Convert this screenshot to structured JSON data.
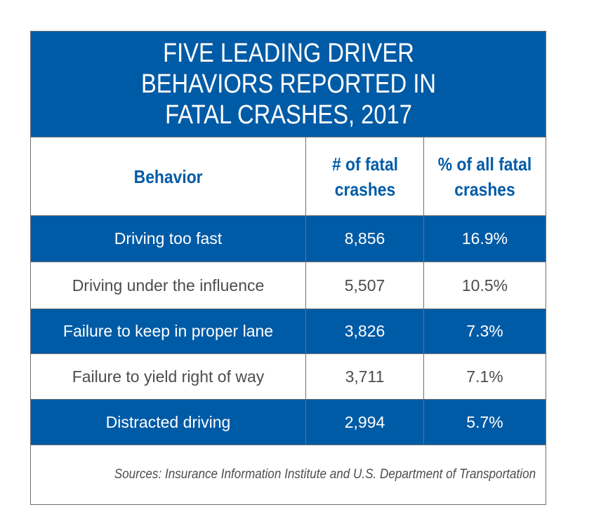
{
  "chart_data": {
    "type": "table",
    "title": "FIVE LEADING DRIVER BEHAVIORS REPORTED IN FATAL CRASHES, 2017",
    "columns": [
      "Behavior",
      "# of fatal crashes",
      "% of all fatal crashes"
    ],
    "rows": [
      {
        "behavior": "Driving too fast",
        "fatal_crashes": "8,856",
        "percent": "16.9%"
      },
      {
        "behavior": "Driving under the influence",
        "fatal_crashes": "5,507",
        "percent": "10.5%"
      },
      {
        "behavior": "Failure to keep in proper lane",
        "fatal_crashes": "3,826",
        "percent": "7.3%"
      },
      {
        "behavior": "Failure to yield right of way",
        "fatal_crashes": "3,711",
        "percent": "7.1%"
      },
      {
        "behavior": "Distracted driving",
        "fatal_crashes": "2,994",
        "percent": "5.7%"
      }
    ],
    "source": "Sources: Insurance Information Institute and U.S. Department of Transportation"
  },
  "colors": {
    "brand_blue": "#005ba6",
    "body_text": "#4d4d4f",
    "rule": "#6d6e71"
  }
}
